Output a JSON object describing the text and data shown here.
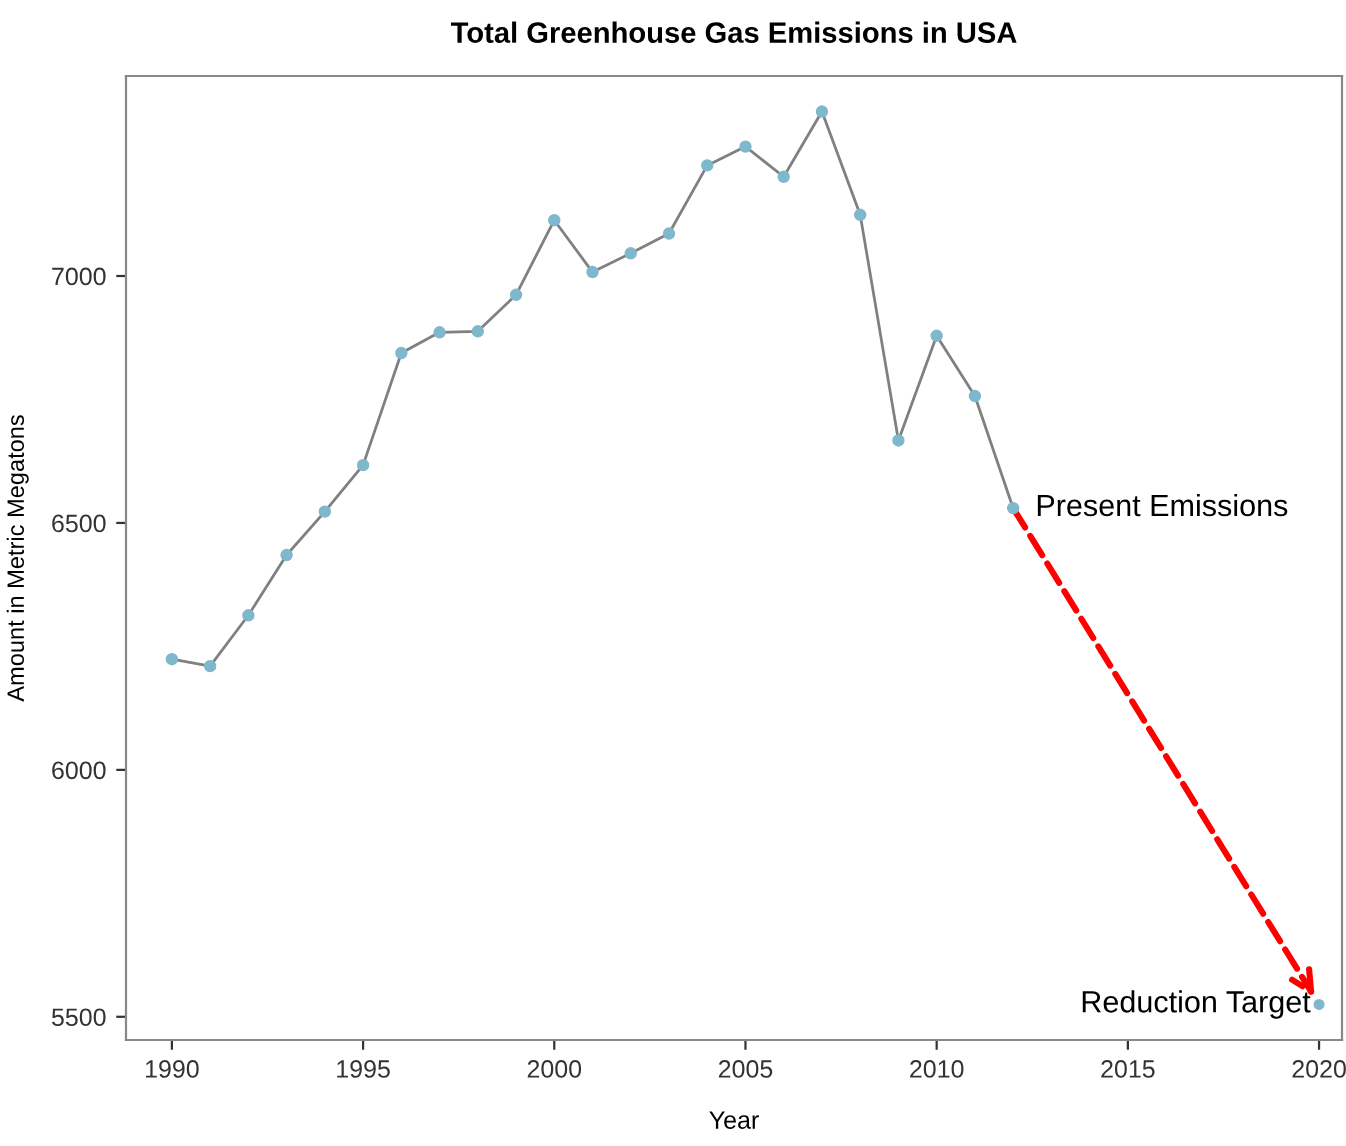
{
  "chart_data": {
    "type": "line",
    "title": "Total Greenhouse Gas Emissions in USA",
    "xlabel": "Year",
    "ylabel": "Amount in Metric Megatons",
    "series": [
      {
        "color": "#7fb8cc",
        "x": [
          1990,
          1991,
          1992,
          1993,
          1994,
          1995,
          1996,
          1997,
          1998,
          1999,
          2000,
          2001,
          2002,
          2003,
          2004,
          2005,
          2006,
          2007,
          2008,
          2009,
          2010,
          2011,
          2012
        ],
        "values": [
          6224,
          6210,
          6313,
          6435,
          6523,
          6617,
          6844,
          6886,
          6888,
          6962,
          7113,
          7008,
          7046,
          7086,
          7224,
          7262,
          7201,
          7333,
          7124,
          6667,
          6879,
          6757,
          6530
        ]
      },
      {
        "type": "scatter",
        "color": "#7fb8cc",
        "x": [
          2020
        ],
        "values": [
          5525
        ]
      }
    ],
    "annotations": [
      {
        "text": "Present Emissions",
        "x": 2012,
        "y": 6530
      },
      {
        "text": "Reduction Target",
        "x": 2020,
        "y": 5525
      }
    ],
    "marker": "circle",
    "line_style": "solid",
    "grid": false,
    "legend": false,
    "xlim": [
      1988.8,
      2020.6
    ],
    "ylim": [
      5453,
      7405
    ],
    "xticks": [
      1990,
      1995,
      2000,
      2005,
      2010,
      2015,
      2020
    ],
    "yticks": [
      5500,
      6000,
      6500,
      7000
    ]
  }
}
